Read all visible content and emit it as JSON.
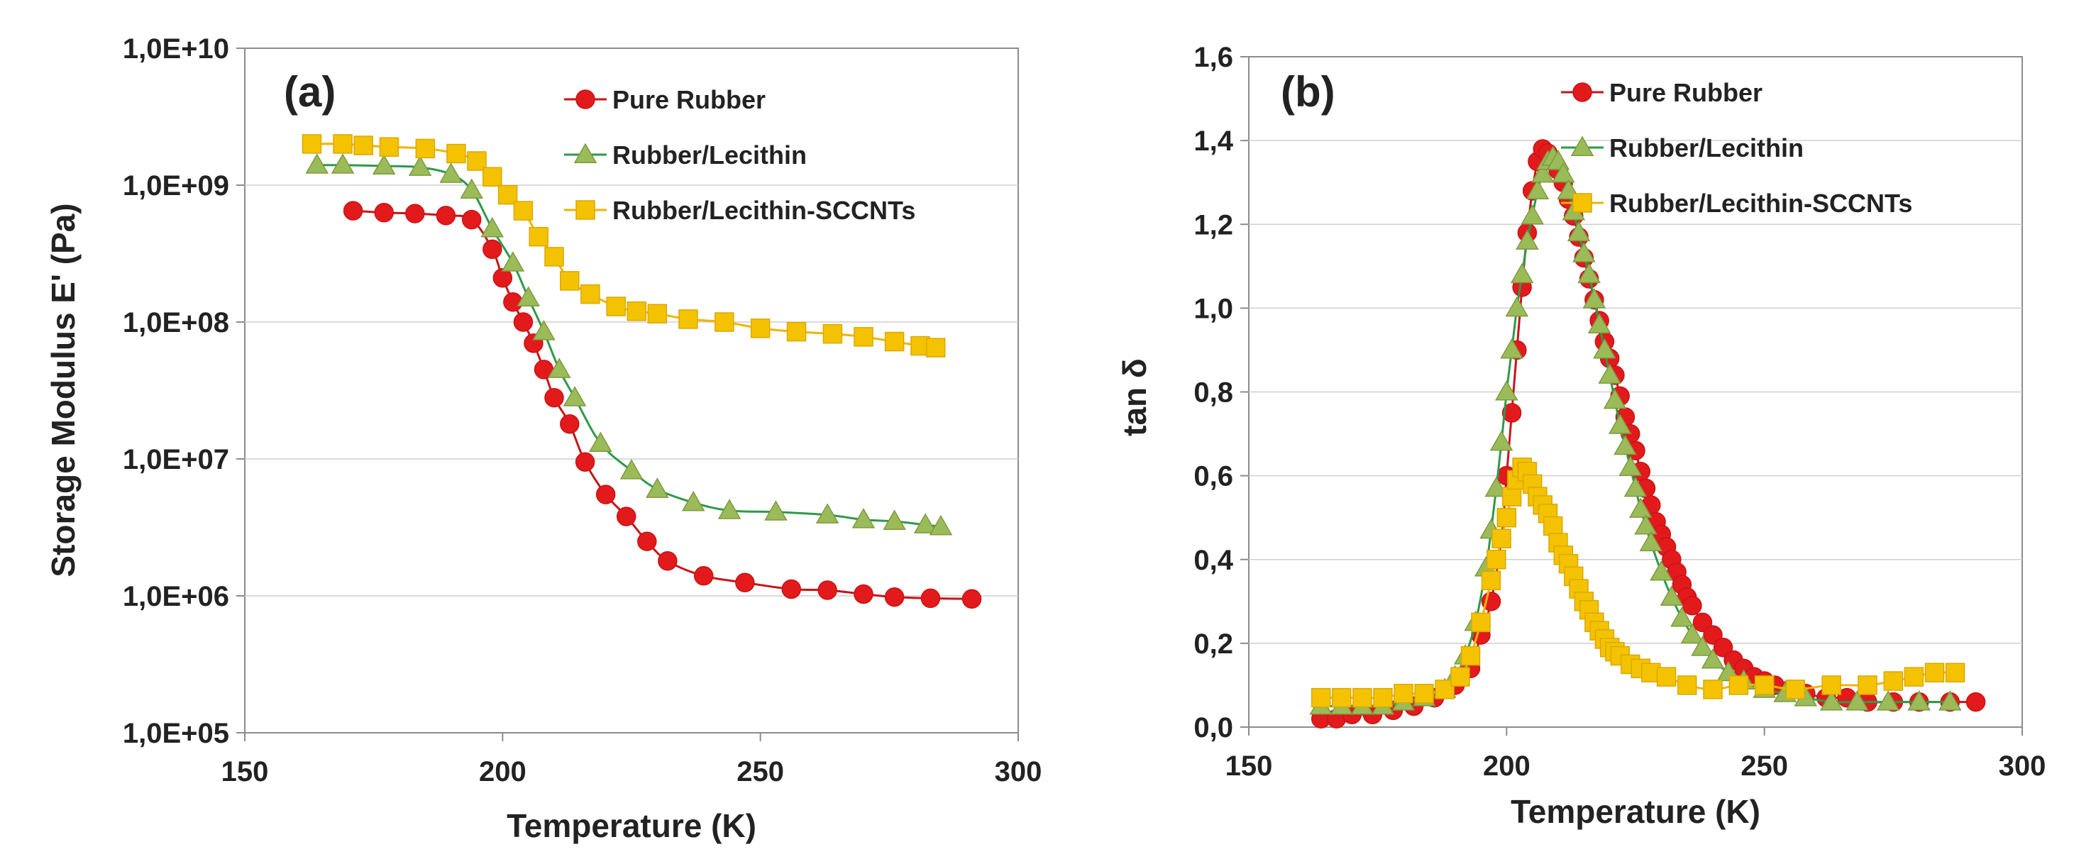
{
  "chart_data": [
    {
      "type": "line",
      "panel_label": "(a)",
      "xlabel": "Temperature (K)",
      "ylabel": "Storage Modulus E' (Pa)",
      "yscale": "log",
      "xlim": [
        150,
        300
      ],
      "ylim": [
        100000,
        10000000000
      ],
      "xticks": [
        150,
        200,
        250,
        300
      ],
      "xtick_labels": [
        "150",
        "200",
        "250",
        "300"
      ],
      "yticks": [
        100000,
        1000000,
        10000000,
        100000000,
        1000000000,
        10000000000
      ],
      "ytick_labels": [
        "1,0E+05",
        "1,0E+06",
        "1,0E+07",
        "1,0E+08",
        "1,0E+09",
        "1,0E+10"
      ],
      "grid": "horizontal",
      "legend_position": "top-right",
      "series": [
        {
          "name": "Pure Rubber",
          "color": "#e31a1c",
          "marker": "circle",
          "x": [
            171,
            177,
            183,
            189,
            194,
            198,
            200,
            202,
            204,
            206,
            208,
            210,
            213,
            216,
            220,
            224,
            228,
            232,
            239,
            247,
            256,
            263,
            270,
            276,
            283,
            291
          ],
          "y": [
            650000000,
            630000000,
            620000000,
            600000000,
            560000000,
            340000000,
            210000000,
            140000000,
            100000000,
            70000000,
            45000000,
            28000000,
            18000000,
            9500000,
            5500000,
            3800000,
            2500000,
            1800000,
            1400000,
            1250000,
            1120000,
            1100000,
            1030000,
            980000,
            960000,
            950000
          ]
        },
        {
          "name": "Rubber/Lecithin",
          "color": "#9bbb59",
          "marker": "triangle",
          "x": [
            164,
            169,
            177,
            184,
            190,
            194,
            198,
            202,
            205,
            208,
            211,
            214,
            219,
            225,
            230,
            237,
            244,
            253,
            263,
            270,
            276,
            282,
            285
          ],
          "y": [
            1400000000,
            1400000000,
            1380000000,
            1350000000,
            1200000000,
            920000000,
            480000000,
            270000000,
            150000000,
            85000000,
            45000000,
            28000000,
            13000000,
            8200000,
            6000000,
            4800000,
            4200000,
            4100000,
            3900000,
            3600000,
            3500000,
            3300000,
            3200000
          ]
        },
        {
          "name": "Rubber/Lecithin-SCCNTs",
          "color": "#f5c200",
          "marker": "square",
          "x": [
            163,
            169,
            173,
            178,
            185,
            191,
            195,
            198,
            201,
            204,
            207,
            210,
            213,
            217,
            222,
            226,
            230,
            236,
            243,
            250,
            257,
            264,
            270,
            276,
            281,
            284
          ],
          "y": [
            2000000000,
            2000000000,
            1950000000,
            1900000000,
            1850000000,
            1700000000,
            1500000000,
            1150000000,
            850000000,
            650000000,
            420000000,
            300000000,
            200000000,
            160000000,
            130000000,
            120000000,
            115000000,
            105000000,
            100000000,
            90000000,
            85000000,
            82000000,
            78000000,
            72000000,
            67000000,
            65000000
          ]
        }
      ]
    },
    {
      "type": "line",
      "panel_label": "(b)",
      "xlabel": "Temperature (K)",
      "ylabel": "tan δ",
      "yscale": "linear",
      "xlim": [
        150,
        300
      ],
      "ylim": [
        0,
        1.6
      ],
      "xticks": [
        150,
        200,
        250,
        300
      ],
      "xtick_labels": [
        "150",
        "200",
        "250",
        "300"
      ],
      "yticks": [
        0,
        0.2,
        0.4,
        0.6,
        0.8,
        1.0,
        1.2,
        1.4,
        1.6
      ],
      "ytick_labels": [
        "0,0",
        "0,2",
        "0,4",
        "0,6",
        "0,8",
        "1,0",
        "1,2",
        "1,4",
        "1,6"
      ],
      "grid": "horizontal",
      "legend_position": "top-right",
      "series": [
        {
          "name": "Pure Rubber",
          "color": "#e31a1c",
          "marker": "circle",
          "x": [
            164,
            167,
            170,
            174,
            178,
            182,
            186,
            190,
            193,
            195,
            197,
            199,
            200,
            201,
            202,
            203,
            204,
            205,
            206,
            207,
            208,
            209,
            210,
            211,
            212,
            213,
            214,
            215,
            216,
            217,
            218,
            219,
            220,
            221,
            222,
            223,
            224,
            225,
            226,
            227,
            228,
            229,
            230,
            231,
            232,
            233,
            234,
            235,
            236,
            238,
            240,
            242,
            244,
            246,
            248,
            250,
            252,
            255,
            258,
            262,
            266,
            270,
            275,
            280,
            286,
            291
          ],
          "y": [
            0.02,
            0.02,
            0.03,
            0.03,
            0.04,
            0.05,
            0.07,
            0.1,
            0.14,
            0.22,
            0.3,
            0.45,
            0.6,
            0.75,
            0.9,
            1.05,
            1.18,
            1.28,
            1.35,
            1.38,
            1.37,
            1.35,
            1.33,
            1.3,
            1.26,
            1.22,
            1.17,
            1.12,
            1.07,
            1.02,
            0.97,
            0.92,
            0.88,
            0.84,
            0.79,
            0.74,
            0.7,
            0.66,
            0.61,
            0.57,
            0.53,
            0.49,
            0.46,
            0.43,
            0.4,
            0.37,
            0.34,
            0.31,
            0.29,
            0.25,
            0.22,
            0.19,
            0.16,
            0.14,
            0.12,
            0.11,
            0.1,
            0.09,
            0.08,
            0.07,
            0.07,
            0.06,
            0.06,
            0.06,
            0.06,
            0.06
          ]
        },
        {
          "name": "Rubber/Lecithin",
          "color": "#9bbb59",
          "marker": "triangle",
          "x": [
            164,
            168,
            172,
            176,
            180,
            184,
            188,
            190,
            192,
            194,
            196,
            197,
            198,
            199,
            200,
            201,
            202,
            203,
            204,
            205,
            206,
            207,
            208,
            209,
            210,
            211,
            212,
            213,
            214,
            215,
            216,
            217,
            218,
            219,
            220,
            221,
            222,
            223,
            224,
            225,
            226,
            227,
            228,
            230,
            232,
            234,
            236,
            238,
            240,
            243,
            246,
            250,
            254,
            258,
            263,
            268,
            274,
            280,
            286
          ],
          "y": [
            0.05,
            0.05,
            0.05,
            0.05,
            0.06,
            0.07,
            0.09,
            0.12,
            0.17,
            0.25,
            0.38,
            0.47,
            0.57,
            0.68,
            0.8,
            0.9,
            1.0,
            1.08,
            1.16,
            1.22,
            1.28,
            1.32,
            1.35,
            1.36,
            1.35,
            1.32,
            1.28,
            1.23,
            1.18,
            1.13,
            1.08,
            1.02,
            0.96,
            0.9,
            0.84,
            0.78,
            0.72,
            0.67,
            0.62,
            0.57,
            0.52,
            0.48,
            0.44,
            0.37,
            0.31,
            0.26,
            0.22,
            0.19,
            0.16,
            0.13,
            0.11,
            0.09,
            0.08,
            0.07,
            0.06,
            0.06,
            0.06,
            0.06,
            0.06
          ]
        },
        {
          "name": "Rubber/Lecithin-SCCNTs",
          "color": "#f5c200",
          "marker": "square",
          "x": [
            164,
            168,
            172,
            176,
            180,
            184,
            188,
            191,
            193,
            195,
            197,
            198,
            199,
            200,
            201,
            202,
            203,
            204,
            205,
            206,
            207,
            208,
            209,
            210,
            211,
            212,
            213,
            214,
            215,
            216,
            217,
            218,
            219,
            220,
            221,
            222,
            224,
            226,
            228,
            231,
            235,
            240,
            245,
            250,
            256,
            263,
            270,
            275,
            279,
            283,
            287
          ],
          "y": [
            0.07,
            0.07,
            0.07,
            0.07,
            0.08,
            0.08,
            0.09,
            0.12,
            0.17,
            0.25,
            0.35,
            0.4,
            0.45,
            0.5,
            0.55,
            0.59,
            0.62,
            0.61,
            0.58,
            0.55,
            0.53,
            0.51,
            0.48,
            0.44,
            0.41,
            0.39,
            0.36,
            0.33,
            0.3,
            0.28,
            0.25,
            0.23,
            0.21,
            0.19,
            0.18,
            0.17,
            0.15,
            0.14,
            0.13,
            0.12,
            0.1,
            0.09,
            0.1,
            0.1,
            0.09,
            0.1,
            0.1,
            0.11,
            0.12,
            0.13,
            0.13
          ]
        }
      ]
    }
  ]
}
